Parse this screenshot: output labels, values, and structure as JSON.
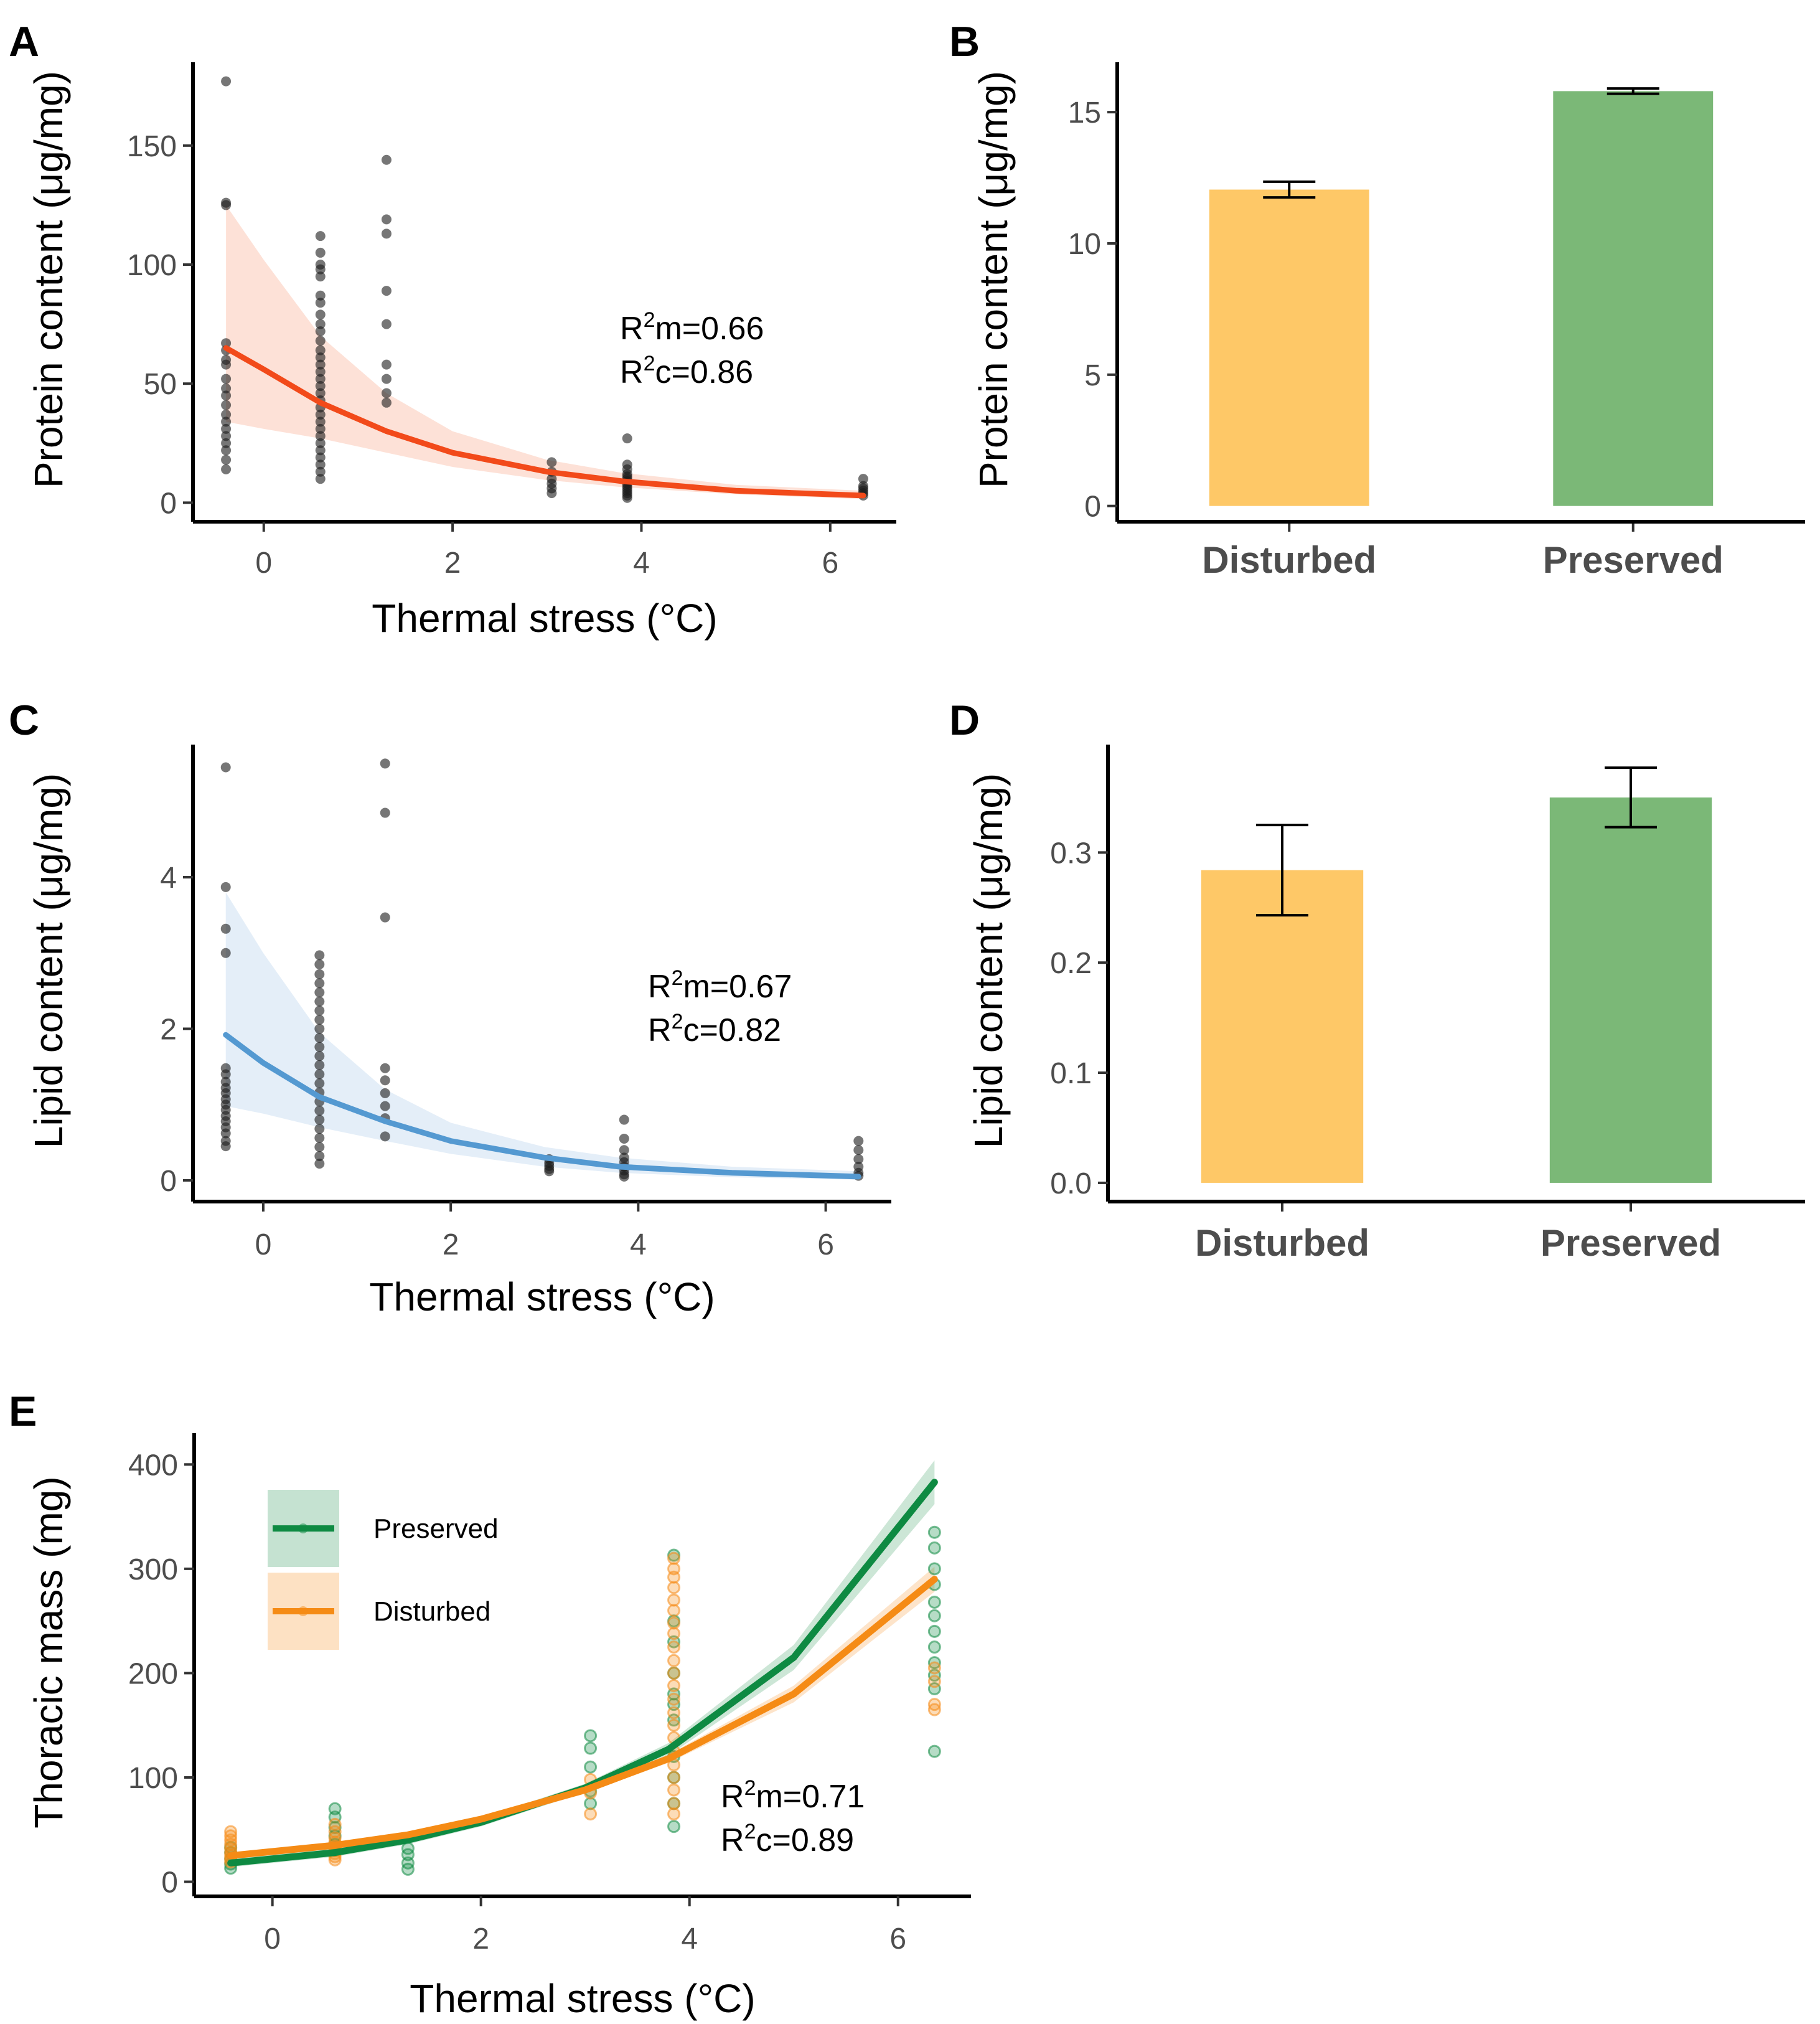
{
  "chart_data": [
    {
      "id": "A",
      "panel_label": "A",
      "type": "scatter",
      "xlabel": "Thermal stress (°C)",
      "ylabel": "Protein content (μg/mg)",
      "xlim": [
        -0.75,
        6.7
      ],
      "ylim": [
        -8,
        185
      ],
      "xticks": [
        0,
        2,
        4,
        6
      ],
      "yticks": [
        0,
        50,
        100,
        150
      ],
      "point_color": "#1a1a1a",
      "fit": {
        "color": "#f24a1a",
        "band_color": "#fcd7c9",
        "x": [
          -0.4,
          0.0,
          0.6,
          1.3,
          2.0,
          3.0,
          3.8,
          5.0,
          6.35
        ],
        "y": [
          65,
          56,
          42,
          30,
          21,
          13,
          9,
          5,
          3
        ],
        "lower": [
          34,
          31,
          27,
          21,
          15,
          9.5,
          6.5,
          3.5,
          1.5
        ],
        "upper": [
          125,
          102,
          70,
          46,
          30,
          18,
          12.5,
          7.5,
          5
        ]
      },
      "annotation": [
        "R",
        "2",
        "m=0.66",
        "R",
        "2",
        "c=0.86"
      ],
      "points": [
        [
          -0.4,
          177
        ],
        [
          -0.4,
          126
        ],
        [
          -0.4,
          125
        ],
        [
          -0.4,
          67
        ],
        [
          -0.4,
          64
        ],
        [
          -0.4,
          60
        ],
        [
          -0.4,
          58
        ],
        [
          -0.4,
          52
        ],
        [
          -0.4,
          48
        ],
        [
          -0.4,
          45
        ],
        [
          -0.4,
          41
        ],
        [
          -0.4,
          37
        ],
        [
          -0.4,
          34
        ],
        [
          -0.4,
          31
        ],
        [
          -0.4,
          28
        ],
        [
          -0.4,
          25
        ],
        [
          -0.4,
          22
        ],
        [
          -0.4,
          18
        ],
        [
          -0.4,
          14
        ],
        [
          0.6,
          112
        ],
        [
          0.6,
          105
        ],
        [
          0.6,
          100
        ],
        [
          0.6,
          98
        ],
        [
          0.6,
          95
        ],
        [
          0.6,
          87
        ],
        [
          0.6,
          84
        ],
        [
          0.6,
          79
        ],
        [
          0.6,
          75
        ],
        [
          0.6,
          72
        ],
        [
          0.6,
          68
        ],
        [
          0.6,
          64
        ],
        [
          0.6,
          61
        ],
        [
          0.6,
          58
        ],
        [
          0.6,
          55
        ],
        [
          0.6,
          52
        ],
        [
          0.6,
          49
        ],
        [
          0.6,
          46
        ],
        [
          0.6,
          43
        ],
        [
          0.6,
          40
        ],
        [
          0.6,
          37
        ],
        [
          0.6,
          34
        ],
        [
          0.6,
          31
        ],
        [
          0.6,
          28
        ],
        [
          0.6,
          25
        ],
        [
          0.6,
          22
        ],
        [
          0.6,
          19
        ],
        [
          0.6,
          16
        ],
        [
          0.6,
          13
        ],
        [
          0.6,
          10
        ],
        [
          1.3,
          144
        ],
        [
          1.3,
          119
        ],
        [
          1.3,
          113
        ],
        [
          1.3,
          89
        ],
        [
          1.3,
          75
        ],
        [
          1.3,
          58
        ],
        [
          1.3,
          52
        ],
        [
          1.3,
          46
        ],
        [
          1.3,
          42
        ],
        [
          3.05,
          17
        ],
        [
          3.05,
          13
        ],
        [
          3.05,
          10
        ],
        [
          3.05,
          8
        ],
        [
          3.05,
          6
        ],
        [
          3.05,
          4
        ],
        [
          3.85,
          27
        ],
        [
          3.85,
          16
        ],
        [
          3.85,
          14
        ],
        [
          3.85,
          12
        ],
        [
          3.85,
          11
        ],
        [
          3.85,
          10
        ],
        [
          3.85,
          9
        ],
        [
          3.85,
          8
        ],
        [
          3.85,
          7
        ],
        [
          3.85,
          6
        ],
        [
          3.85,
          5
        ],
        [
          3.85,
          4
        ],
        [
          3.85,
          3
        ],
        [
          3.85,
          2
        ],
        [
          6.35,
          10
        ],
        [
          6.35,
          7
        ],
        [
          6.35,
          6
        ],
        [
          6.35,
          5
        ],
        [
          6.35,
          4
        ],
        [
          6.35,
          3
        ]
      ]
    },
    {
      "id": "B",
      "panel_label": "B",
      "type": "bar",
      "categories": [
        "Disturbed",
        "Preserved"
      ],
      "values": [
        12.05,
        15.8
      ],
      "errors": [
        0.3,
        0.1
      ],
      "colors": [
        "#fec867",
        "#7bb877"
      ],
      "xlabel": "",
      "ylabel": "Protein content (μg/mg)",
      "ylim": [
        -0.6,
        16.9
      ],
      "yticks": [
        0,
        5,
        10,
        15
      ]
    },
    {
      "id": "C",
      "panel_label": "C",
      "type": "scatter",
      "xlabel": "Thermal stress (°C)",
      "ylabel": "Lipid content (μg/mg)",
      "xlim": [
        -0.75,
        6.7
      ],
      "ylim": [
        -0.28,
        5.75
      ],
      "xticks": [
        0,
        2,
        4,
        6
      ],
      "yticks": [
        0,
        2,
        4
      ],
      "point_color": "#1a1a1a",
      "fit": {
        "color": "#5499d1",
        "band_color": "#dbe8f5",
        "x": [
          -0.4,
          0.0,
          0.6,
          1.3,
          2.0,
          3.0,
          3.8,
          5.0,
          6.35
        ],
        "y": [
          1.92,
          1.55,
          1.1,
          0.78,
          0.52,
          0.3,
          0.18,
          0.1,
          0.05
        ],
        "lower": [
          0.98,
          0.88,
          0.7,
          0.52,
          0.35,
          0.18,
          0.1,
          0.04,
          0.01
        ],
        "upper": [
          3.8,
          3.0,
          1.95,
          1.2,
          0.76,
          0.44,
          0.3,
          0.18,
          0.12
        ]
      },
      "annotation": [
        "R",
        "2",
        "m=0.67",
        "R",
        "2",
        "c=0.82"
      ],
      "points": [
        [
          -0.4,
          5.45
        ],
        [
          -0.4,
          3.87
        ],
        [
          -0.4,
          3.32
        ],
        [
          -0.4,
          3.0
        ],
        [
          -0.4,
          1.48
        ],
        [
          -0.4,
          1.4
        ],
        [
          -0.4,
          1.3
        ],
        [
          -0.4,
          1.22
        ],
        [
          -0.4,
          1.15
        ],
        [
          -0.4,
          1.07
        ],
        [
          -0.4,
          1.0
        ],
        [
          -0.4,
          0.93
        ],
        [
          -0.4,
          0.85
        ],
        [
          -0.4,
          0.78
        ],
        [
          -0.4,
          0.7
        ],
        [
          -0.4,
          0.62
        ],
        [
          -0.4,
          0.52
        ],
        [
          -0.4,
          0.45
        ],
        [
          0.6,
          2.97
        ],
        [
          0.6,
          2.85
        ],
        [
          0.6,
          2.72
        ],
        [
          0.6,
          2.6
        ],
        [
          0.6,
          2.48
        ],
        [
          0.6,
          2.36
        ],
        [
          0.6,
          2.24
        ],
        [
          0.6,
          2.12
        ],
        [
          0.6,
          2.0
        ],
        [
          0.6,
          1.88
        ],
        [
          0.6,
          1.76
        ],
        [
          0.6,
          1.64
        ],
        [
          0.6,
          1.52
        ],
        [
          0.6,
          1.4
        ],
        [
          0.6,
          1.28
        ],
        [
          0.6,
          1.16
        ],
        [
          0.6,
          1.04
        ],
        [
          0.6,
          0.92
        ],
        [
          0.6,
          0.8
        ],
        [
          0.6,
          0.68
        ],
        [
          0.6,
          0.56
        ],
        [
          0.6,
          0.44
        ],
        [
          0.6,
          0.32
        ],
        [
          0.6,
          0.22
        ],
        [
          1.3,
          5.5
        ],
        [
          1.3,
          4.85
        ],
        [
          1.3,
          3.47
        ],
        [
          1.3,
          1.48
        ],
        [
          1.3,
          1.32
        ],
        [
          1.3,
          1.15
        ],
        [
          1.3,
          0.98
        ],
        [
          1.3,
          0.82
        ],
        [
          1.3,
          0.58
        ],
        [
          3.05,
          0.28
        ],
        [
          3.05,
          0.23
        ],
        [
          3.05,
          0.19
        ],
        [
          3.05,
          0.15
        ],
        [
          3.05,
          0.12
        ],
        [
          3.85,
          0.8
        ],
        [
          3.85,
          0.55
        ],
        [
          3.85,
          0.4
        ],
        [
          3.85,
          0.3
        ],
        [
          3.85,
          0.24
        ],
        [
          3.85,
          0.18
        ],
        [
          3.85,
          0.13
        ],
        [
          3.85,
          0.08
        ],
        [
          3.85,
          0.05
        ],
        [
          6.35,
          0.52
        ],
        [
          6.35,
          0.4
        ],
        [
          6.35,
          0.28
        ],
        [
          6.35,
          0.18
        ],
        [
          6.35,
          0.1
        ],
        [
          6.35,
          0.06
        ]
      ]
    },
    {
      "id": "D",
      "panel_label": "D",
      "type": "bar",
      "categories": [
        "Disturbed",
        "Preserved"
      ],
      "values": [
        0.284,
        0.35
      ],
      "errors": [
        0.041,
        0.027
      ],
      "colors": [
        "#fec867",
        "#7bb877"
      ],
      "xlabel": "",
      "ylabel": "Lipid content (μg/mg)",
      "ylim": [
        -0.017,
        0.398
      ],
      "yticks": [
        0.0,
        0.1,
        0.2,
        0.3
      ],
      "ytick_labels": [
        "0.0",
        "0.1",
        "0.2",
        "0.3"
      ]
    },
    {
      "id": "E",
      "panel_label": "E",
      "type": "scatter",
      "xlabel": "Thermal stress (°C)",
      "ylabel": "Thoracic mass (mg)",
      "xlim": [
        -0.75,
        6.7
      ],
      "ylim": [
        -14,
        430
      ],
      "xticks": [
        0,
        2,
        4,
        6
      ],
      "yticks": [
        0,
        100,
        200,
        300,
        400
      ],
      "annotation": [
        "R",
        "2",
        "m=0.71",
        "R",
        "2",
        "c=0.89"
      ],
      "legend": {
        "placement": "top-left",
        "entries": [
          "Preserved",
          "Disturbed"
        ]
      },
      "series": [
        {
          "name": "Preserved",
          "color": "#0e8a42",
          "band_color": "#b6dbc5",
          "fit_x": [
            -0.4,
            0.6,
            1.3,
            2.0,
            3.0,
            3.8,
            5.0,
            6.35
          ],
          "fit_y": [
            18,
            28,
            40,
            57,
            90,
            127,
            215,
            383
          ],
          "band_lower": [
            14,
            24,
            36,
            53,
            86,
            121,
            203,
            362
          ],
          "band_upper": [
            22,
            32,
            44,
            61,
            94,
            133,
            227,
            404
          ],
          "points": [
            [
              -0.4,
              13
            ],
            [
              -0.4,
              17
            ],
            [
              -0.4,
              22
            ],
            [
              -0.4,
              28
            ],
            [
              -0.4,
              33
            ],
            [
              0.6,
              70
            ],
            [
              0.6,
              62
            ],
            [
              0.6,
              52
            ],
            [
              0.6,
              44
            ],
            [
              0.6,
              36
            ],
            [
              0.6,
              30
            ],
            [
              1.3,
              32
            ],
            [
              1.3,
              26
            ],
            [
              1.3,
              18
            ],
            [
              1.3,
              12
            ],
            [
              3.05,
              140
            ],
            [
              3.05,
              128
            ],
            [
              3.05,
              110
            ],
            [
              3.05,
              87
            ],
            [
              3.05,
              75
            ],
            [
              3.85,
              313
            ],
            [
              3.85,
              250
            ],
            [
              3.85,
              230
            ],
            [
              3.85,
              200
            ],
            [
              3.85,
              180
            ],
            [
              3.85,
              170
            ],
            [
              3.85,
              155
            ],
            [
              3.85,
              120
            ],
            [
              3.85,
              100
            ],
            [
              3.85,
              75
            ],
            [
              3.85,
              53
            ],
            [
              6.35,
              335
            ],
            [
              6.35,
              320
            ],
            [
              6.35,
              300
            ],
            [
              6.35,
              285
            ],
            [
              6.35,
              268
            ],
            [
              6.35,
              255
            ],
            [
              6.35,
              240
            ],
            [
              6.35,
              225
            ],
            [
              6.35,
              210
            ],
            [
              6.35,
              198
            ],
            [
              6.35,
              185
            ],
            [
              6.35,
              125
            ]
          ]
        },
        {
          "name": "Disturbed",
          "color": "#f58b15",
          "band_color": "#fcd9b4",
          "fit_x": [
            -0.4,
            0.6,
            1.3,
            2.0,
            3.0,
            3.8,
            5.0,
            6.35
          ],
          "fit_y": [
            25,
            35,
            45,
            60,
            88,
            118,
            180,
            290
          ],
          "band_lower": [
            22,
            32,
            42,
            57,
            85,
            114,
            172,
            278
          ],
          "band_upper": [
            28,
            38,
            48,
            63,
            91,
            122,
            188,
            302
          ],
          "points": [
            [
              -0.4,
              48
            ],
            [
              -0.4,
              44
            ],
            [
              -0.4,
              40
            ],
            [
              -0.4,
              36
            ],
            [
              -0.4,
              32
            ],
            [
              -0.4,
              28
            ],
            [
              -0.4,
              25
            ],
            [
              -0.4,
              22
            ],
            [
              -0.4,
              19
            ],
            [
              0.6,
              55
            ],
            [
              0.6,
              48
            ],
            [
              0.6,
              42
            ],
            [
              0.6,
              38
            ],
            [
              0.6,
              34
            ],
            [
              0.6,
              30
            ],
            [
              0.6,
              27
            ],
            [
              0.6,
              24
            ],
            [
              0.6,
              21
            ],
            [
              3.05,
              98
            ],
            [
              3.05,
              85
            ],
            [
              3.05,
              65
            ],
            [
              3.85,
              310
            ],
            [
              3.85,
              300
            ],
            [
              3.85,
              292
            ],
            [
              3.85,
              282
            ],
            [
              3.85,
              270
            ],
            [
              3.85,
              260
            ],
            [
              3.85,
              248
            ],
            [
              3.85,
              238
            ],
            [
              3.85,
              225
            ],
            [
              3.85,
              212
            ],
            [
              3.85,
              200
            ],
            [
              3.85,
              188
            ],
            [
              3.85,
              175
            ],
            [
              3.85,
              162
            ],
            [
              3.85,
              150
            ],
            [
              3.85,
              138
            ],
            [
              3.85,
              125
            ],
            [
              3.85,
              112
            ],
            [
              3.85,
              100
            ],
            [
              3.85,
              88
            ],
            [
              3.85,
              75
            ],
            [
              3.85,
              65
            ],
            [
              6.35,
              205
            ],
            [
              6.35,
              192
            ],
            [
              6.35,
              170
            ],
            [
              6.35,
              165
            ]
          ]
        }
      ]
    }
  ]
}
